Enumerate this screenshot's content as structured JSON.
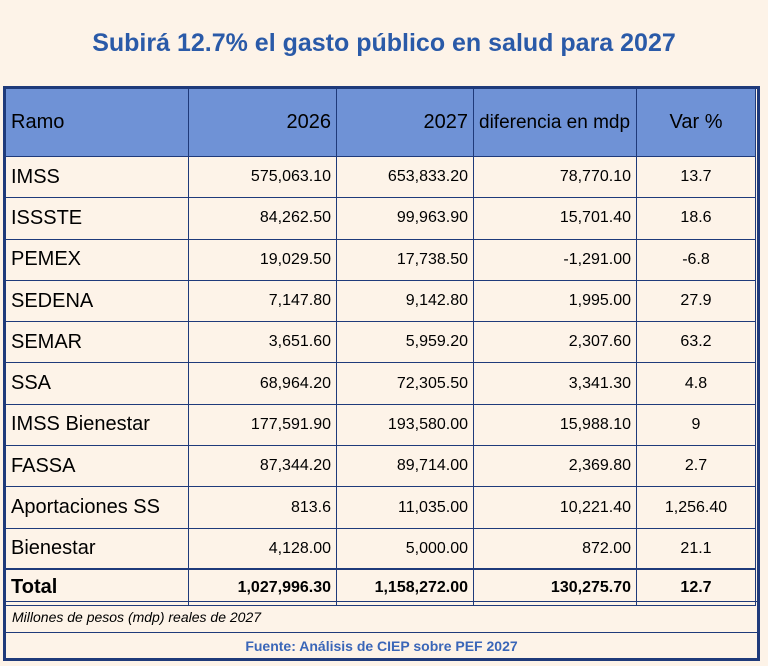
{
  "title": "Subirá 12.7% el gasto público en salud para 2027",
  "headers": [
    "Ramo",
    "2026",
    "2027",
    "diferencia en mdp",
    "Var %"
  ],
  "rows": [
    {
      "ramo": "IMSS",
      "y2026": "575,063.10",
      "y2027": "653,833.20",
      "diff": "78,770.10",
      "var": "13.7"
    },
    {
      "ramo": "ISSSTE",
      "y2026": "84,262.50",
      "y2027": "99,963.90",
      "diff": "15,701.40",
      "var": "18.6"
    },
    {
      "ramo": "PEMEX",
      "y2026": "19,029.50",
      "y2027": "17,738.50",
      "diff": "-1,291.00",
      "var": "-6.8"
    },
    {
      "ramo": "SEDENA",
      "y2026": "7,147.80",
      "y2027": "9,142.80",
      "diff": "1,995.00",
      "var": "27.9"
    },
    {
      "ramo": "SEMAR",
      "y2026": "3,651.60",
      "y2027": "5,959.20",
      "diff": "2,307.60",
      "var": "63.2"
    },
    {
      "ramo": "SSA",
      "y2026": "68,964.20",
      "y2027": "72,305.50",
      "diff": "3,341.30",
      "var": "4.8"
    },
    {
      "ramo": "IMSS Bienestar",
      "y2026": "177,591.90",
      "y2027": "193,580.00",
      "diff": "15,988.10",
      "var": "9"
    },
    {
      "ramo": "FASSA",
      "y2026": "87,344.20",
      "y2027": "89,714.00",
      "diff": "2,369.80",
      "var": "2.7"
    },
    {
      "ramo": "Aportaciones SS",
      "y2026": "813.6",
      "y2027": "11,035.00",
      "diff": "10,221.40",
      "var": "1,256.40"
    },
    {
      "ramo": "Bienestar",
      "y2026": "4,128.00",
      "y2027": "5,000.00",
      "diff": "872.00",
      "var": "21.1"
    }
  ],
  "total": {
    "ramo": "Total",
    "y2026": "1,027,996.30",
    "y2027": "1,158,272.00",
    "diff": "130,275.70",
    "var": "12.7"
  },
  "note": "Millones de pesos (mdp) reales de 2027",
  "source": "Fuente: Análisis de CIEP sobre PEF 2027",
  "colors": {
    "title": "#2a5aa8",
    "header_bg": "#6f92d6",
    "border": "#1f3a7a",
    "background": "#fdf3e8",
    "source": "#3a66b8"
  }
}
